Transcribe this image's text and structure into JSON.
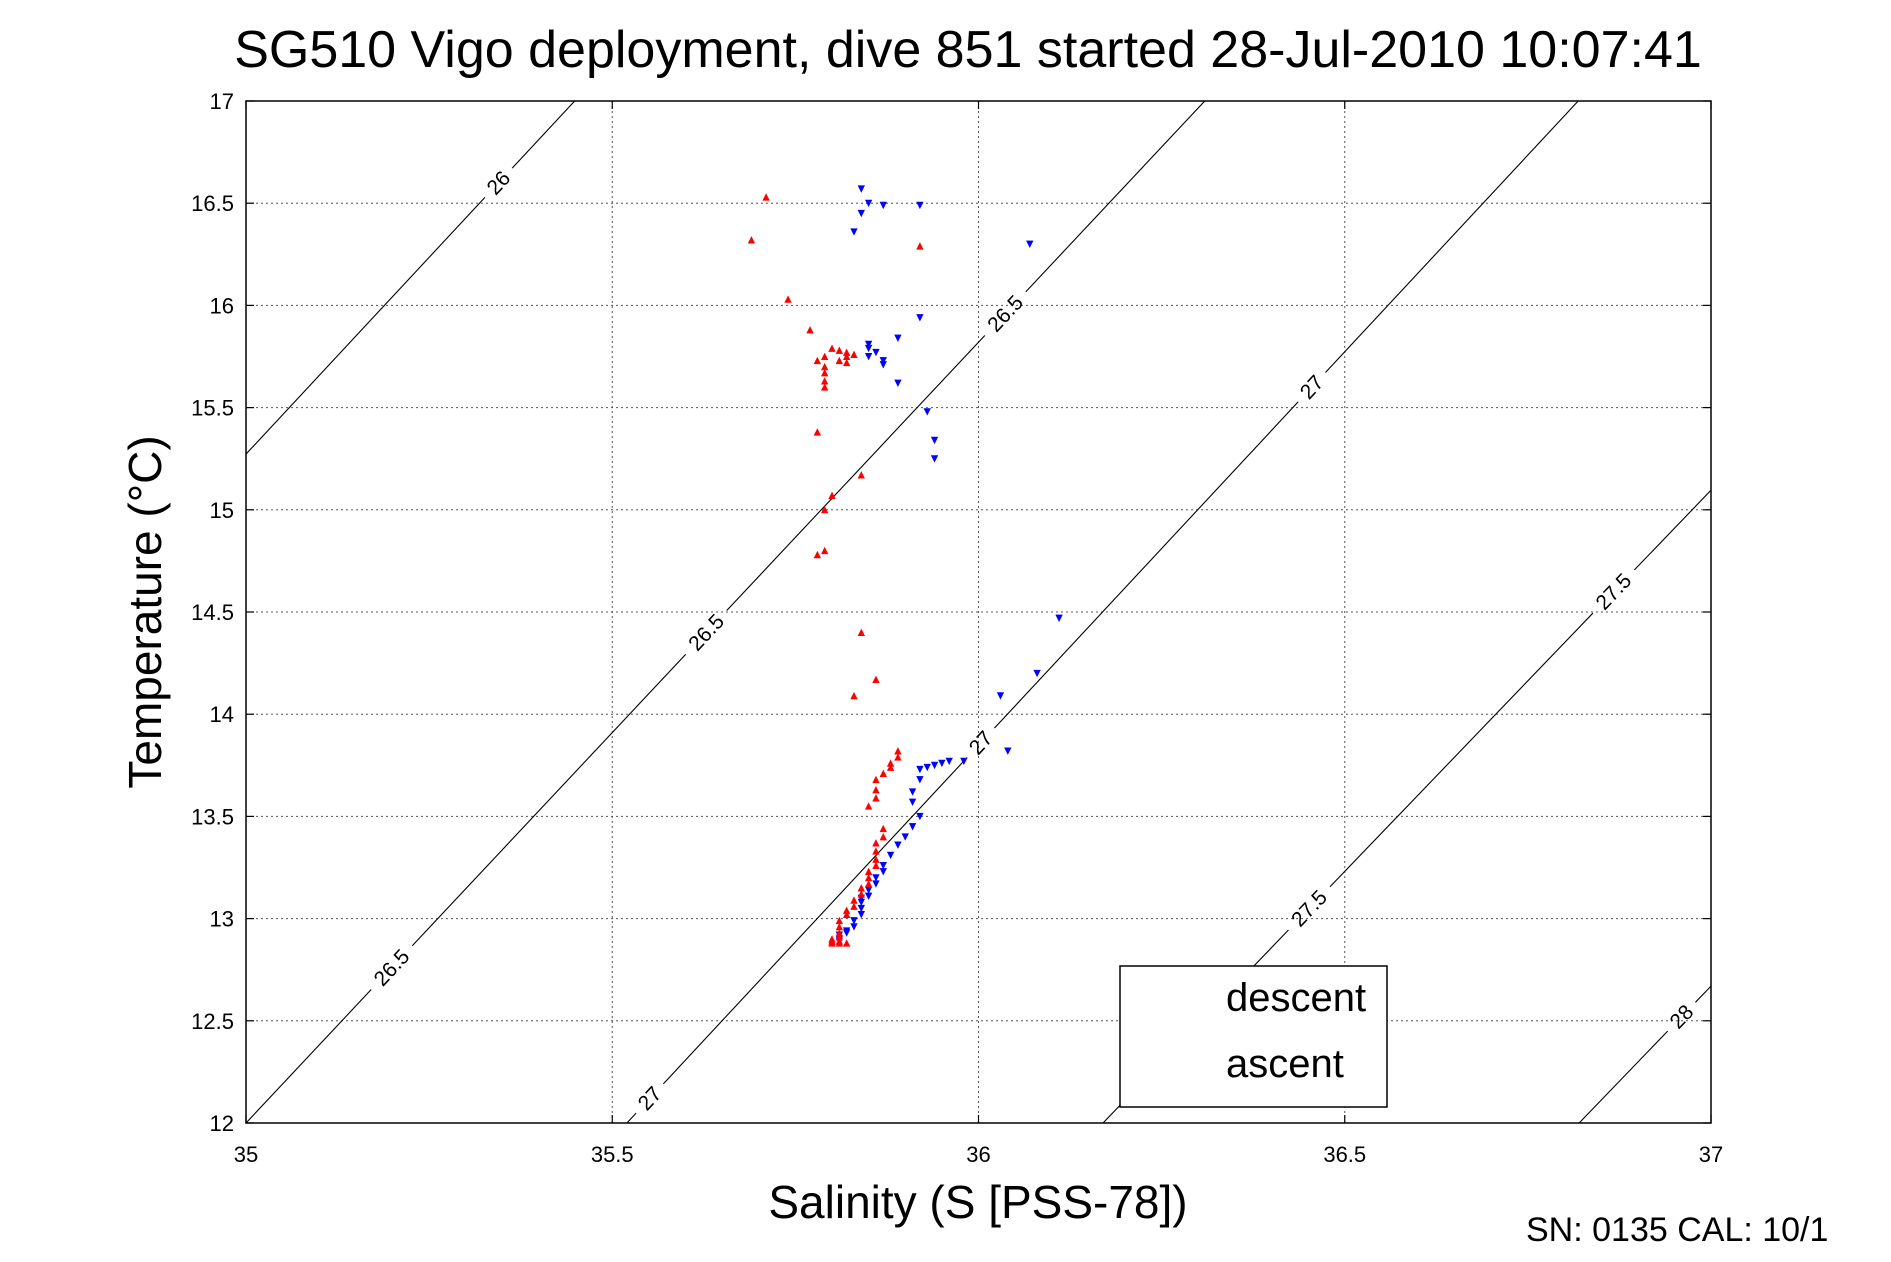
{
  "chart_data": {
    "type": "scatter",
    "title": "SG510 Vigo deployment, dive 851 started 28-Jul-2010 10:07:41",
    "xlabel": "Salinity (S [PSS-78])",
    "ylabel": "Temperature (°C)",
    "xlim": [
      35,
      37
    ],
    "ylim": [
      12,
      17
    ],
    "x_ticks": [
      "35",
      "35.5",
      "36",
      "36.5",
      "37"
    ],
    "y_ticks": [
      "12",
      "12.5",
      "13",
      "13.5",
      "14",
      "14.5",
      "15",
      "15.5",
      "16",
      "16.5",
      "17"
    ],
    "grid": true,
    "legend_position": "bottom-right",
    "series": [
      {
        "name": "descent",
        "color": "#0000ff",
        "marker": "triangle-down",
        "points": [
          [
            35.84,
            16.57
          ],
          [
            35.85,
            16.5
          ],
          [
            35.87,
            16.49
          ],
          [
            35.84,
            16.45
          ],
          [
            35.83,
            16.36
          ],
          [
            35.92,
            16.49
          ],
          [
            36.07,
            16.3
          ],
          [
            35.92,
            15.94
          ],
          [
            35.89,
            15.84
          ],
          [
            35.85,
            15.81
          ],
          [
            35.85,
            15.79
          ],
          [
            35.86,
            15.77
          ],
          [
            35.85,
            15.75
          ],
          [
            35.87,
            15.73
          ],
          [
            35.87,
            15.71
          ],
          [
            35.89,
            15.62
          ],
          [
            35.93,
            15.48
          ],
          [
            35.94,
            15.34
          ],
          [
            35.94,
            15.25
          ],
          [
            36.11,
            14.47
          ],
          [
            36.08,
            14.2
          ],
          [
            36.03,
            14.09
          ],
          [
            36.04,
            13.82
          ],
          [
            35.98,
            13.77
          ],
          [
            35.96,
            13.77
          ],
          [
            35.95,
            13.76
          ],
          [
            35.94,
            13.75
          ],
          [
            35.93,
            13.74
          ],
          [
            35.92,
            13.73
          ],
          [
            35.92,
            13.68
          ],
          [
            35.91,
            13.62
          ],
          [
            35.91,
            13.57
          ],
          [
            35.92,
            13.5
          ],
          [
            35.91,
            13.45
          ],
          [
            35.9,
            13.4
          ],
          [
            35.89,
            13.36
          ],
          [
            35.88,
            13.31
          ],
          [
            35.87,
            13.26
          ],
          [
            35.87,
            13.23
          ],
          [
            35.86,
            13.2
          ],
          [
            35.86,
            13.17
          ],
          [
            35.85,
            13.14
          ],
          [
            35.85,
            13.11
          ],
          [
            35.84,
            13.1
          ],
          [
            35.84,
            13.08
          ],
          [
            35.84,
            13.05
          ],
          [
            35.84,
            13.02
          ],
          [
            35.83,
            12.99
          ],
          [
            35.83,
            12.96
          ],
          [
            35.82,
            12.94
          ],
          [
            35.82,
            12.93
          ],
          [
            35.81,
            12.92
          ],
          [
            35.81,
            12.9
          ],
          [
            35.81,
            12.89
          ]
        ]
      },
      {
        "name": "ascent",
        "color": "#ff0000",
        "marker": "triangle-up",
        "points": [
          [
            35.71,
            16.53
          ],
          [
            35.69,
            16.32
          ],
          [
            35.92,
            16.29
          ],
          [
            35.74,
            16.03
          ],
          [
            35.77,
            15.88
          ],
          [
            35.8,
            15.79
          ],
          [
            35.81,
            15.78
          ],
          [
            35.82,
            15.77
          ],
          [
            35.83,
            15.76
          ],
          [
            35.82,
            15.75
          ],
          [
            35.81,
            15.73
          ],
          [
            35.82,
            15.72
          ],
          [
            35.79,
            15.75
          ],
          [
            35.78,
            15.73
          ],
          [
            35.79,
            15.7
          ],
          [
            35.79,
            15.67
          ],
          [
            35.79,
            15.63
          ],
          [
            35.79,
            15.6
          ],
          [
            35.78,
            15.38
          ],
          [
            35.84,
            15.17
          ],
          [
            35.8,
            15.07
          ],
          [
            35.79,
            15.0
          ],
          [
            35.79,
            14.8
          ],
          [
            35.78,
            14.78
          ],
          [
            35.84,
            14.4
          ],
          [
            35.86,
            14.17
          ],
          [
            35.83,
            14.09
          ],
          [
            35.89,
            13.82
          ],
          [
            35.89,
            13.79
          ],
          [
            35.88,
            13.76
          ],
          [
            35.88,
            13.74
          ],
          [
            35.87,
            13.71
          ],
          [
            35.86,
            13.68
          ],
          [
            35.86,
            13.63
          ],
          [
            35.86,
            13.59
          ],
          [
            35.85,
            13.55
          ],
          [
            35.87,
            13.44
          ],
          [
            35.87,
            13.4
          ],
          [
            35.86,
            13.37
          ],
          [
            35.86,
            13.33
          ],
          [
            35.86,
            13.29
          ],
          [
            35.86,
            13.26
          ],
          [
            35.85,
            13.23
          ],
          [
            35.85,
            13.2
          ],
          [
            35.85,
            13.17
          ],
          [
            35.84,
            13.15
          ],
          [
            35.84,
            13.12
          ],
          [
            35.83,
            13.09
          ],
          [
            35.83,
            13.06
          ],
          [
            35.82,
            13.04
          ],
          [
            35.82,
            13.02
          ],
          [
            35.81,
            12.99
          ],
          [
            35.81,
            12.96
          ],
          [
            35.81,
            12.93
          ],
          [
            35.81,
            12.91
          ],
          [
            35.8,
            12.9
          ],
          [
            35.8,
            12.89
          ],
          [
            35.81,
            12.89
          ],
          [
            35.8,
            12.88
          ],
          [
            35.81,
            12.88
          ],
          [
            35.82,
            12.88
          ]
        ]
      }
    ],
    "contours": {
      "levels": [
        {
          "value": 26,
          "labels": [
            "26",
            "26"
          ]
        },
        {
          "value": 26.5,
          "labels": [
            "26.5",
            "26.5",
            "26.5"
          ]
        },
        {
          "value": 27,
          "labels": [
            "27",
            "27",
            "27"
          ]
        },
        {
          "value": 27.5,
          "labels": [
            "27.5",
            "27.5"
          ]
        },
        {
          "value": 28,
          "labels": [
            "28"
          ]
        }
      ]
    }
  },
  "footer": "SN: 0135  CAL: 10/1"
}
